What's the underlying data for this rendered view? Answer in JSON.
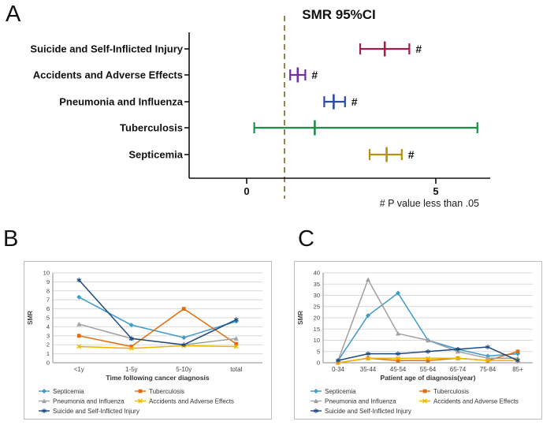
{
  "page": {
    "background": "#ffffff"
  },
  "panel_a": {
    "letter": "A",
    "title": "SMR 95%CI",
    "footnote": "# P value less than .05",
    "sig_marker": "#"
  },
  "panel_b": {
    "letter": "B"
  },
  "panel_c": {
    "letter": "C"
  },
  "chart_data": [
    {
      "id": "forest",
      "type": "forest",
      "title": "SMR 95%CI",
      "reference_line": 1,
      "xticks": [
        0,
        5
      ],
      "xlim": [
        -1.5,
        6.5
      ],
      "sig_symbol": "#",
      "footnote": "# P value less than .05",
      "rows": [
        {
          "label": "Suicide and Self-Inflicted Injury",
          "smr": 3.65,
          "ci_low": 3.0,
          "ci_high": 4.3,
          "significant": true,
          "color": "#9e2044"
        },
        {
          "label": "Accidents and Adverse Effects",
          "smr": 1.35,
          "ci_low": 1.15,
          "ci_high": 1.55,
          "significant": true,
          "color": "#7030a0"
        },
        {
          "label": "Pneumonia and Influenza",
          "smr": 2.3,
          "ci_low": 2.05,
          "ci_high": 2.6,
          "significant": true,
          "color": "#2e4b9e"
        },
        {
          "label": "Tuberculosis",
          "smr": 1.8,
          "ci_low": 0.2,
          "ci_high": 6.1,
          "significant": false,
          "color": "#1a9048"
        },
        {
          "label": "Septicemia",
          "smr": 3.7,
          "ci_low": 3.25,
          "ci_high": 4.1,
          "significant": true,
          "color": "#b3920f"
        }
      ]
    },
    {
      "id": "time",
      "type": "line",
      "ylabel": "SMR",
      "xlabel": "Time following cancer diagnosis",
      "ylim": [
        0,
        10
      ],
      "ytick_step": 1,
      "grid": true,
      "legend_position": "bottom",
      "legend_cols": [
        18,
        140
      ],
      "categories": [
        "<1y",
        "1-5y",
        "5-10y",
        "total"
      ],
      "series": [
        {
          "name": "Septicemia",
          "color": "#3c9bc9",
          "marker": "diamond",
          "values": [
            7.3,
            4.2,
            2.8,
            4.6
          ]
        },
        {
          "name": "Tuberculosis",
          "color": "#e36c0a",
          "marker": "square",
          "values": [
            3.0,
            1.8,
            6.0,
            2.1
          ]
        },
        {
          "name": "Pneumonia and Influenza",
          "color": "#a0a0a0",
          "marker": "triangle",
          "values": [
            4.3,
            2.7,
            2.0,
            2.7
          ]
        },
        {
          "name": "Accidents and Adverse Effects",
          "color": "#f2b200",
          "marker": "x",
          "values": [
            1.8,
            1.6,
            1.9,
            1.8
          ]
        },
        {
          "name": "Suicide and Self-Inflicted Injury",
          "color": "#1f497d",
          "marker": "asterisk",
          "values": [
            9.2,
            2.7,
            2.0,
            4.8
          ]
        }
      ],
      "legend_rows": [
        [
          "Septicemia",
          "Tuberculosis"
        ],
        [
          "Pneumonia and Influenza",
          "Accidents and Adverse Effects"
        ],
        [
          "Suicide and Self-Inflicted Injury"
        ]
      ]
    },
    {
      "id": "age",
      "type": "line",
      "ylabel": "SMR",
      "xlabel": "Patient age of diagnosis(year)",
      "ylim": [
        0,
        40
      ],
      "ytick_step": 5,
      "grid": true,
      "legend_position": "bottom",
      "legend_cols": [
        20,
        158
      ],
      "categories": [
        "0-34",
        "35-44",
        "45-54",
        "55-64",
        "65-74",
        "75-84",
        "85+"
      ],
      "series": [
        {
          "name": "Septicemia",
          "color": "#3c9bc9",
          "marker": "diamond",
          "values": [
            1,
            21,
            31,
            10,
            6,
            3,
            4
          ]
        },
        {
          "name": "Tuberculosis",
          "color": "#e36c0a",
          "marker": "square",
          "values": [
            0,
            2,
            1,
            1,
            2,
            1,
            5
          ]
        },
        {
          "name": "Pneumonia and Influenza",
          "color": "#a0a0a0",
          "marker": "triangle",
          "values": [
            1,
            37,
            13,
            10,
            5,
            2,
            2
          ]
        },
        {
          "name": "Accidents and Adverse Effects",
          "color": "#f2b200",
          "marker": "x",
          "values": [
            0,
            2,
            2,
            2,
            2,
            1,
            1
          ]
        },
        {
          "name": "Suicide and Self-Inflicted Injury",
          "color": "#1f497d",
          "marker": "asterisk",
          "values": [
            1,
            4,
            4,
            5,
            6,
            7,
            1
          ]
        }
      ],
      "legend_rows": [
        [
          "Septicemia",
          "Tuberculosis"
        ],
        [
          "Pneumonia and Influenza",
          "Accidents and Adverse Effects"
        ],
        [
          "Suicide and Self-Inflicted Injury"
        ]
      ]
    }
  ]
}
